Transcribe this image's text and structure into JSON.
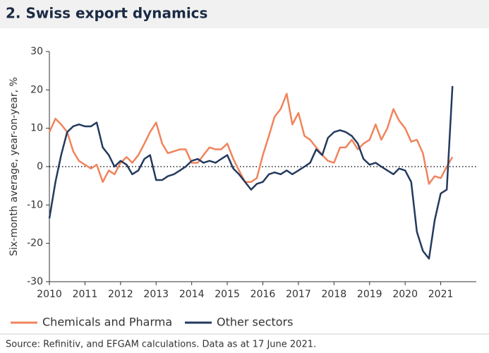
{
  "chart_data": {
    "type": "line",
    "title": "2. Swiss export dynamics",
    "ylabel": "Six-month average, year-on-year, %",
    "source": "Source: Refinitiv, and EFGAM calculations. Data as at 17 June 2021.",
    "x": [
      2010,
      2010.17,
      2010.33,
      2010.5,
      2010.67,
      2010.83,
      2011,
      2011.17,
      2011.33,
      2011.5,
      2011.67,
      2011.83,
      2012,
      2012.17,
      2012.33,
      2012.5,
      2012.67,
      2012.83,
      2013,
      2013.17,
      2013.33,
      2013.5,
      2013.67,
      2013.83,
      2014,
      2014.17,
      2014.33,
      2014.5,
      2014.67,
      2014.83,
      2015,
      2015.17,
      2015.33,
      2015.5,
      2015.67,
      2015.83,
      2016,
      2016.17,
      2016.33,
      2016.5,
      2016.67,
      2016.83,
      2017,
      2017.17,
      2017.33,
      2017.5,
      2017.67,
      2017.83,
      2018,
      2018.17,
      2018.33,
      2018.5,
      2018.67,
      2018.83,
      2019,
      2019.17,
      2019.33,
      2019.5,
      2019.67,
      2019.83,
      2020,
      2020.17,
      2020.33,
      2020.5,
      2020.67,
      2020.83,
      2021,
      2021.17,
      2021.33
    ],
    "series": [
      {
        "name": "Chemicals and Pharma",
        "color": "#f0845c",
        "values": [
          9,
          12.5,
          11,
          9,
          4,
          1.5,
          0.5,
          -0.5,
          0.5,
          -4,
          -1,
          -2,
          1,
          2.5,
          1,
          3,
          6,
          9,
          11.5,
          6,
          3.5,
          4,
          4.5,
          4.5,
          1,
          1,
          3,
          5,
          4.5,
          4.5,
          6,
          2,
          -1,
          -4,
          -4,
          -3,
          3,
          8,
          13,
          15,
          19,
          11,
          14,
          8,
          7,
          5,
          3,
          1.5,
          1,
          5,
          5,
          7,
          4.5,
          6,
          7,
          11,
          7,
          10,
          15,
          12,
          10,
          6.5,
          7,
          3.5,
          -4.5,
          -2.5,
          -3,
          0,
          2.5
        ]
      },
      {
        "name": "Other sectors",
        "color": "#243a5e",
        "values": [
          -13.5,
          -4,
          3,
          9,
          10.5,
          11,
          10.5,
          10.5,
          11.5,
          5,
          3,
          0,
          1.5,
          0.5,
          -2,
          -1,
          2,
          3,
          -3.5,
          -3.5,
          -2.5,
          -2,
          -1,
          0,
          1.5,
          2,
          1,
          1.5,
          1,
          2,
          3,
          -0.5,
          -2,
          -4,
          -6,
          -4.5,
          -4,
          -2,
          -1.5,
          -2,
          -1,
          -2,
          -1,
          0,
          1,
          4.5,
          3,
          7.5,
          9,
          9.5,
          9,
          8,
          6,
          2,
          0.5,
          1,
          0,
          -1,
          -2,
          -0.5,
          -1,
          -4,
          -17,
          -22,
          -24,
          -14,
          -7,
          -6,
          21
        ]
      }
    ],
    "xlim": [
      2010,
      2022
    ],
    "xticks": [
      2010,
      2011,
      2012,
      2013,
      2014,
      2015,
      2016,
      2017,
      2018,
      2019,
      2020,
      2021
    ],
    "ylim": [
      -30,
      30
    ],
    "yticks": [
      -30,
      -20,
      -10,
      0,
      10,
      20,
      30
    ]
  }
}
